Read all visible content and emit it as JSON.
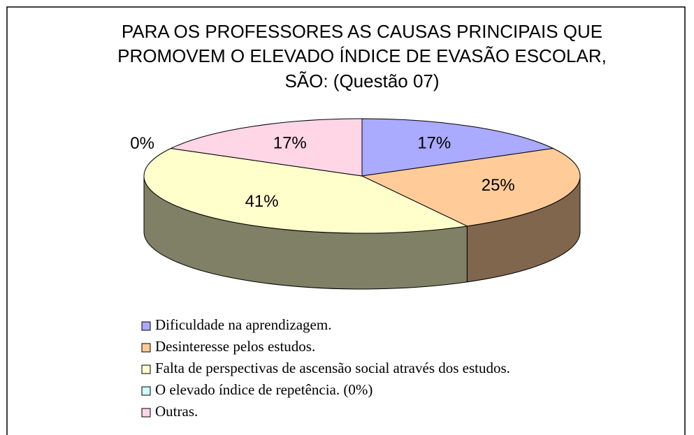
{
  "chart_data": {
    "type": "pie3d",
    "title": [
      "PARA OS PROFESSORES AS CAUSAS PRINCIPAIS QUE",
      "PROMOVEM O ELEVADO ÍNDICE DE EVASÃO ESCOLAR,",
      "SÃO: (Questão 07)"
    ],
    "categories": [
      "Dificuldade na aprendizagem.",
      "Desinteresse pelos estudos.",
      "Falta de perspectivas de ascensão social através dos estudos.",
      "O elevado índice de repetência. (0%)",
      "Outras."
    ],
    "values": [
      17,
      25,
      41,
      0,
      17
    ],
    "value_labels": [
      "17%",
      "25%",
      "41%",
      "0%",
      "17%"
    ],
    "colors": [
      "#aaaaff",
      "#ffcc99",
      "#ffffcc",
      "#ccffff",
      "#ffd6e6"
    ],
    "legend": "bottom"
  }
}
